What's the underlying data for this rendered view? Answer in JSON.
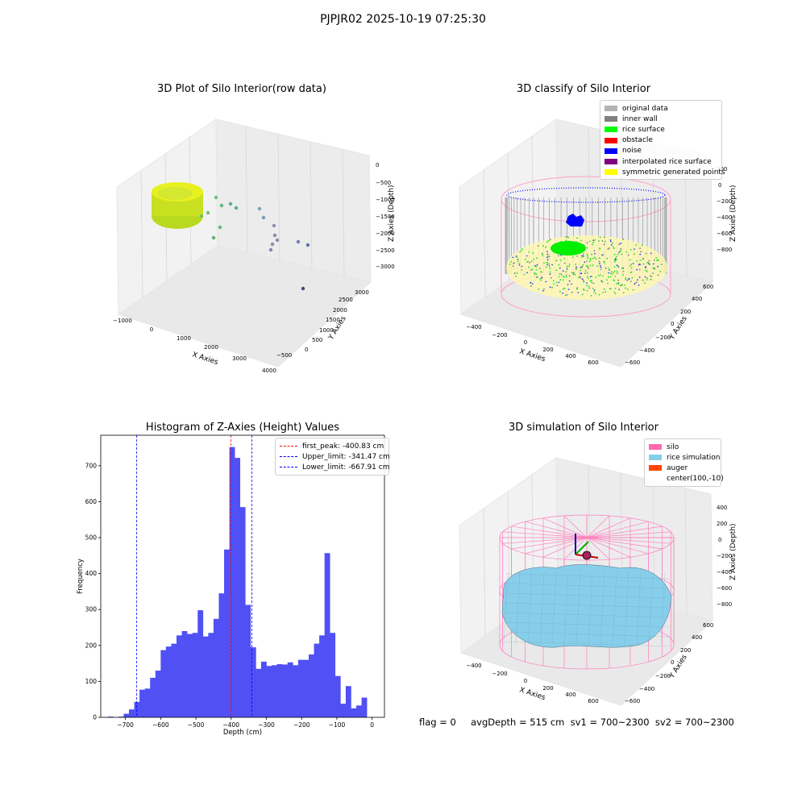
{
  "suptitle": "PJPJR02 2025-10-19 07:25:30",
  "panels": {
    "raw": {
      "title": "3D Plot of Silo Interior(row data)",
      "xlabel": "X Axies",
      "ylabel": "Y Axies",
      "zlabel": "Z Axies (Depth)",
      "xticks": [
        "−1000",
        "0",
        "1000",
        "2000",
        "3000",
        "4000"
      ],
      "yticks": [
        "−500",
        "0",
        "500",
        "1000",
        "1500",
        "2000",
        "2500",
        "3000"
      ],
      "zticks": [
        "0",
        "−500",
        "−1000",
        "−1500",
        "−2000",
        "−2500",
        "−3000"
      ]
    },
    "classify": {
      "title": "3D classify of Silo Interior",
      "xlabel": "X Axies",
      "ylabel": "Y Axies",
      "zlabel": "Z Axies (Depth)",
      "xticks": [
        "−400",
        "−200",
        "0",
        "200",
        "400",
        "600"
      ],
      "yticks": [
        "−600",
        "−400",
        "−200",
        "0",
        "200",
        "400",
        "600"
      ],
      "zticks": [
        "200",
        "0",
        "−200",
        "−400",
        "−600",
        "−800"
      ],
      "legend": [
        {
          "label": "original data",
          "color": "#b3b3b3"
        },
        {
          "label": "inner wall",
          "color": "#808080"
        },
        {
          "label": "rice surface",
          "color": "#00ff00"
        },
        {
          "label": "obstacle",
          "color": "#ff0000"
        },
        {
          "label": "noise",
          "color": "#0000ff"
        },
        {
          "label": "interpolated rice surface",
          "color": "#800080"
        },
        {
          "label": "symmetric generated points",
          "color": "#ffff00"
        }
      ]
    },
    "simulation": {
      "title": "3D simulation of Silo Interior",
      "xlabel": "X Axies",
      "ylabel": "Y Axies",
      "zlabel": "Z Axies (Depth)",
      "xticks": [
        "−400",
        "−200",
        "0",
        "200",
        "400",
        "600"
      ],
      "yticks": [
        "−600",
        "−400",
        "−200",
        "0",
        "200",
        "400",
        "600"
      ],
      "zticks": [
        "400",
        "200",
        "0",
        "−200",
        "−400",
        "−600",
        "−800"
      ],
      "legend": [
        {
          "label": "silo",
          "color": "#ff69b4"
        },
        {
          "label": "rice simulation",
          "color": "#87ceeb"
        },
        {
          "label": "auger",
          "color": "#ff4500"
        },
        {
          "label": "center(100,-10)",
          "color": ""
        }
      ]
    }
  },
  "chart_data": [
    {
      "type": "bar",
      "title": "Histogram of Z-Axies (Height) Values",
      "xlabel": "Depth (cm)",
      "ylabel": "Frequency",
      "xlim": [
        -770,
        35
      ],
      "ylim": [
        0,
        785
      ],
      "bin_start": -750,
      "bin_width": 15,
      "color": "#5050f5",
      "values": [
        2,
        0,
        2,
        10,
        22,
        43,
        77,
        80,
        110,
        130,
        187,
        197,
        205,
        228,
        240,
        232,
        235,
        298,
        225,
        235,
        274,
        345,
        467,
        752,
        722,
        585,
        313,
        195,
        135,
        155,
        143,
        145,
        148,
        147,
        153,
        145,
        160,
        160,
        175,
        205,
        228,
        457,
        235,
        115,
        38,
        87,
        25,
        33,
        55
      ],
      "xticks": [
        -700,
        -600,
        -500,
        -400,
        -300,
        -200,
        -100,
        0
      ],
      "xtick_labels": [
        "−700",
        "−600",
        "−500",
        "−400",
        "−300",
        "−200",
        "−100",
        "0"
      ],
      "yticks": [
        0,
        100,
        200,
        300,
        400,
        500,
        600,
        700
      ],
      "vlines": [
        {
          "label": "first_peak: -400.83 cm",
          "x": -400.83,
          "color": "#ff0000"
        },
        {
          "label": "Upper_limit: -341.47 cm",
          "x": -341.47,
          "color": "#0000ff"
        },
        {
          "label": "Lower_limit: -667.91 cm",
          "x": -667.91,
          "color": "#0000ff"
        }
      ],
      "legend_position": "top-right"
    }
  ],
  "footer": {
    "text": "flag = 0     avgDepth = 515 cm  sv1 = 700~2300  sv2 = 700~2300"
  }
}
